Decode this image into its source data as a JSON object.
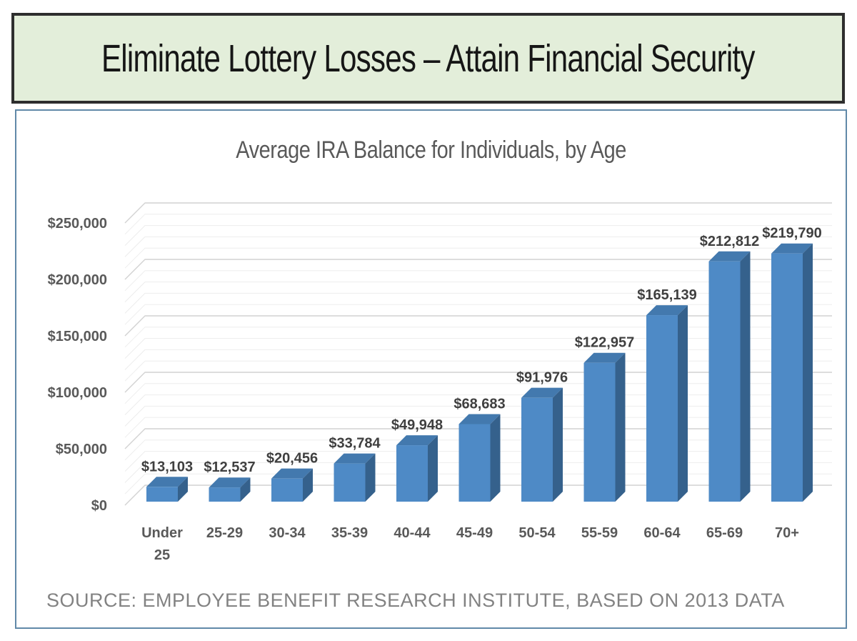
{
  "banner": {
    "title": "Eliminate Lottery Losses – Attain Financial Security"
  },
  "chart": {
    "title": "Average IRA Balance for Individuals, by Age",
    "source": "SOURCE: EMPLOYEE BENEFIT RESEARCH INSTITUTE, BASED ON 2013 DATA"
  },
  "chart_data": {
    "type": "bar",
    "style": "3d-column",
    "title": "Average IRA Balance for Individuals, by Age",
    "categories": [
      "Under 25",
      "25-29",
      "30-34",
      "35-39",
      "40-44",
      "45-49",
      "50-54",
      "55-59",
      "60-64",
      "65-69",
      "70+"
    ],
    "values": [
      13103,
      12537,
      20456,
      33784,
      49948,
      68683,
      91976,
      122957,
      165139,
      212812,
      219790
    ],
    "data_labels": [
      "$13,103",
      "$12,537",
      "$20,456",
      "$33,784",
      "$49,948",
      "$68,683",
      "$91,976",
      "$122,957",
      "$165,139",
      "$212,812",
      "$219,790"
    ],
    "y_ticks": [
      "$0",
      "$50,000",
      "$100,000",
      "$150,000",
      "$200,000",
      "$250,000"
    ],
    "ylim": [
      0,
      250000
    ],
    "major_unit": 50000,
    "minor_unit": 10000,
    "grid": "on",
    "legend": "none",
    "xlabel": "",
    "ylabel": "",
    "colors": {
      "bar_front": "#4e8ac6",
      "bar_top": "#4379ae",
      "bar_side": "#35618c"
    }
  },
  "colors": {
    "banner_bg": "#e3eeda",
    "banner_border": "#2e2e2e",
    "chart_border": "#6089a8",
    "title_text": "#595959",
    "axis_text": "#595959",
    "source_text": "#828282"
  }
}
